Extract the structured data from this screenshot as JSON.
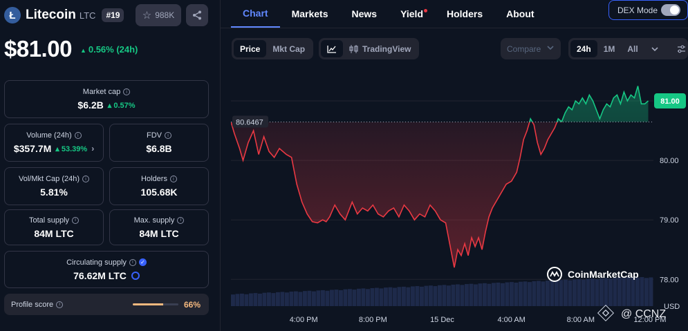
{
  "coin": {
    "logo_letter": "Ł",
    "name": "Litecoin",
    "symbol": "LTC",
    "rank": "#19",
    "watchlist_count": "988K",
    "price": "$81.00",
    "price_change": "0.56% (24h)"
  },
  "stats": {
    "market_cap": {
      "label": "Market cap",
      "value": "$6.2B",
      "change": "0.57%"
    },
    "volume": {
      "label": "Volume (24h)",
      "value": "$357.7M",
      "change": "53.39%"
    },
    "fdv": {
      "label": "FDV",
      "value": "$6.8B"
    },
    "vol_mkt_cap": {
      "label": "Vol/Mkt Cap (24h)",
      "value": "5.81%"
    },
    "holders": {
      "label": "Holders",
      "value": "105.68K"
    },
    "total_supply": {
      "label": "Total supply",
      "value": "84M LTC"
    },
    "max_supply": {
      "label": "Max. supply",
      "value": "84M LTC"
    },
    "circulating_supply": {
      "label": "Circulating supply",
      "value": "76.62M LTC"
    }
  },
  "profile": {
    "label": "Profile score",
    "value": "66%",
    "fraction": 0.66
  },
  "nav": {
    "tabs": [
      "Chart",
      "Markets",
      "News",
      "Yield",
      "Holders",
      "About"
    ],
    "dex_mode": "DEX Mode"
  },
  "toolbar": {
    "price": "Price",
    "mkt_cap": "Mkt Cap",
    "tradingview": "TradingView",
    "compare": "Compare",
    "range_24h": "24h",
    "range_1m": "1M",
    "range_all": "All"
  },
  "colors": {
    "up": "#16c784",
    "down": "#ea3943",
    "accent": "#6188ff",
    "profile": "#f5b97f"
  },
  "chart_data": {
    "type": "line",
    "reference_price": 80.6467,
    "reference_label": "80.6467",
    "current_price_label": "81.00",
    "ylim": [
      77.55,
      81.5
    ],
    "y_ticks": [
      78.0,
      79.0,
      80.0
    ],
    "y_tick_labels": [
      "78.00",
      "79.00",
      "80.00"
    ],
    "y_unit": "USD",
    "x_ticks": [
      {
        "label": "4:00 PM",
        "t": 4.2
      },
      {
        "label": "8:00 PM",
        "t": 8.2
      },
      {
        "label": "15 Dec",
        "t": 12.2
      },
      {
        "label": "4:00 AM",
        "t": 16.2
      },
      {
        "label": "8:00 AM",
        "t": 20.2
      },
      {
        "label": "12:00 PM",
        "t": 24.2
      }
    ],
    "xlim": [
      0,
      24.4
    ],
    "series": [
      {
        "values": [
          [
            0.0,
            80.65
          ],
          [
            0.2,
            80.45
          ],
          [
            0.5,
            80.2
          ],
          [
            0.7,
            80.0
          ],
          [
            1.0,
            80.3
          ],
          [
            1.3,
            80.5
          ],
          [
            1.6,
            80.1
          ],
          [
            1.9,
            80.4
          ],
          [
            2.2,
            80.15
          ],
          [
            2.5,
            80.05
          ],
          [
            2.8,
            80.2
          ],
          [
            3.2,
            80.1
          ],
          [
            3.5,
            80.05
          ],
          [
            3.8,
            79.6
          ],
          [
            4.1,
            79.3
          ],
          [
            4.4,
            79.1
          ],
          [
            4.7,
            78.97
          ],
          [
            5.0,
            78.95
          ],
          [
            5.3,
            79.0
          ],
          [
            5.5,
            78.97
          ],
          [
            5.7,
            79.05
          ],
          [
            6.0,
            79.25
          ],
          [
            6.3,
            79.1
          ],
          [
            6.6,
            79.0
          ],
          [
            7.0,
            79.3
          ],
          [
            7.3,
            79.1
          ],
          [
            7.6,
            79.2
          ],
          [
            7.9,
            79.15
          ],
          [
            8.2,
            79.25
          ],
          [
            8.5,
            79.1
          ],
          [
            8.8,
            79.05
          ],
          [
            9.1,
            79.15
          ],
          [
            9.4,
            79.2
          ],
          [
            9.7,
            79.05
          ],
          [
            10.0,
            79.25
          ],
          [
            10.3,
            79.15
          ],
          [
            10.6,
            79.0
          ],
          [
            10.9,
            79.1
          ],
          [
            11.2,
            79.05
          ],
          [
            11.5,
            79.25
          ],
          [
            11.8,
            79.15
          ],
          [
            12.1,
            79.0
          ],
          [
            12.4,
            78.95
          ],
          [
            12.7,
            78.5
          ],
          [
            12.9,
            78.2
          ],
          [
            13.1,
            78.5
          ],
          [
            13.3,
            78.4
          ],
          [
            13.5,
            78.6
          ],
          [
            13.7,
            78.4
          ],
          [
            13.9,
            78.7
          ],
          [
            14.1,
            78.55
          ],
          [
            14.3,
            78.7
          ],
          [
            14.5,
            78.5
          ],
          [
            14.7,
            78.8
          ],
          [
            14.9,
            79.05
          ],
          [
            15.1,
            79.2
          ],
          [
            15.3,
            79.3
          ],
          [
            15.6,
            79.45
          ],
          [
            15.9,
            79.6
          ],
          [
            16.2,
            79.65
          ],
          [
            16.5,
            79.8
          ],
          [
            16.7,
            80.05
          ],
          [
            16.9,
            80.35
          ],
          [
            17.1,
            80.5
          ],
          [
            17.3,
            80.7
          ],
          [
            17.5,
            80.6
          ],
          [
            17.7,
            80.3
          ],
          [
            17.9,
            80.1
          ],
          [
            18.1,
            80.2
          ],
          [
            18.3,
            80.35
          ],
          [
            18.5,
            80.45
          ],
          [
            18.7,
            80.55
          ],
          [
            18.9,
            80.7
          ],
          [
            19.1,
            80.65
          ],
          [
            19.3,
            80.8
          ],
          [
            19.5,
            80.9
          ],
          [
            19.7,
            80.85
          ],
          [
            19.9,
            81.0
          ],
          [
            20.1,
            80.95
          ],
          [
            20.3,
            81.05
          ],
          [
            20.5,
            80.95
          ],
          [
            20.7,
            81.1
          ],
          [
            20.9,
            81.0
          ],
          [
            21.1,
            80.85
          ],
          [
            21.3,
            80.7
          ],
          [
            21.5,
            80.85
          ],
          [
            21.7,
            80.95
          ],
          [
            21.9,
            80.9
          ],
          [
            22.1,
            81.05
          ],
          [
            22.3,
            81.1
          ],
          [
            22.5,
            80.95
          ],
          [
            22.7,
            81.15
          ],
          [
            22.9,
            81.0
          ],
          [
            23.1,
            81.1
          ],
          [
            23.3,
            81.05
          ],
          [
            23.5,
            81.25
          ],
          [
            23.7,
            80.95
          ],
          [
            23.9,
            80.95
          ],
          [
            24.1,
            81.0
          ]
        ]
      }
    ],
    "volume": [
      0.4,
      0.42,
      0.43,
      0.41,
      0.44,
      0.45,
      0.43,
      0.46,
      0.47,
      0.45,
      0.48,
      0.49,
      0.47,
      0.5,
      0.51,
      0.49,
      0.52,
      0.53,
      0.51,
      0.54,
      0.55,
      0.53,
      0.56,
      0.57,
      0.55,
      0.58,
      0.59,
      0.57,
      0.6,
      0.61,
      0.59,
      0.62,
      0.63,
      0.61,
      0.64,
      0.65,
      0.63,
      0.66,
      0.67,
      0.65,
      0.68,
      0.69,
      0.67,
      0.7,
      0.71,
      0.69,
      0.72,
      0.73,
      0.71,
      0.74,
      0.75,
      0.73,
      0.76,
      0.77,
      0.75,
      0.78,
      0.79,
      0.77,
      0.8,
      0.81,
      0.79,
      0.82,
      0.83,
      0.81,
      0.84,
      0.85,
      0.83,
      0.86,
      0.87,
      0.85,
      0.88,
      0.89,
      0.87,
      0.9,
      0.91,
      0.89,
      0.92,
      0.93,
      0.91,
      0.94,
      0.95,
      0.93,
      0.96,
      0.97,
      0.95,
      0.98,
      0.99,
      0.97,
      1.0,
      0.99,
      0.98,
      1.0,
      0.97,
      0.99
    ],
    "watermark": "CoinMarketCap",
    "overlay_text": "@ CCNZ"
  }
}
